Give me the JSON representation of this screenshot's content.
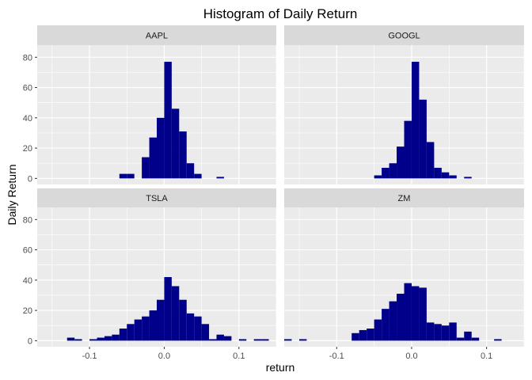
{
  "chart_data": {
    "type": "bar",
    "subtype": "faceted-histogram",
    "title": "Histogram of Daily Return",
    "xlabel": "return",
    "ylabel": "Daily Return",
    "xlim": [
      -0.17,
      0.15
    ],
    "ylim": [
      -4,
      88
    ],
    "x_ticks": [
      -0.1,
      0.0,
      0.1
    ],
    "x_tick_labels": [
      "-0.1",
      "0.0",
      "0.1"
    ],
    "y_ticks": [
      0,
      20,
      40,
      60,
      80
    ],
    "y_tick_labels": [
      "0",
      "20",
      "40",
      "60",
      "80"
    ],
    "bin_width": 0.01,
    "bar_color": "#00008B",
    "panel_background": "#EBEBEB",
    "strip_background": "#D9D9D9",
    "gridline_color": "#FFFFFF",
    "grid": true,
    "legend": "none",
    "facets": [
      {
        "label": "AAPL",
        "bins": [
          {
            "x": -0.055,
            "count": 3
          },
          {
            "x": -0.045,
            "count": 3
          },
          {
            "x": -0.025,
            "count": 14
          },
          {
            "x": -0.015,
            "count": 27
          },
          {
            "x": -0.005,
            "count": 40
          },
          {
            "x": 0.005,
            "count": 77
          },
          {
            "x": 0.015,
            "count": 46
          },
          {
            "x": 0.025,
            "count": 31
          },
          {
            "x": 0.035,
            "count": 10
          },
          {
            "x": 0.045,
            "count": 3
          },
          {
            "x": 0.075,
            "count": 1
          }
        ]
      },
      {
        "label": "GOOGL",
        "bins": [
          {
            "x": -0.045,
            "count": 2
          },
          {
            "x": -0.035,
            "count": 7
          },
          {
            "x": -0.025,
            "count": 10
          },
          {
            "x": -0.015,
            "count": 21
          },
          {
            "x": -0.005,
            "count": 38
          },
          {
            "x": 0.005,
            "count": 77
          },
          {
            "x": 0.015,
            "count": 52
          },
          {
            "x": 0.025,
            "count": 24
          },
          {
            "x": 0.035,
            "count": 7
          },
          {
            "x": 0.045,
            "count": 4
          },
          {
            "x": 0.055,
            "count": 2
          },
          {
            "x": 0.075,
            "count": 1
          }
        ]
      },
      {
        "label": "TSLA",
        "bins": [
          {
            "x": -0.125,
            "count": 2
          },
          {
            "x": -0.115,
            "count": 1
          },
          {
            "x": -0.095,
            "count": 1
          },
          {
            "x": -0.085,
            "count": 2
          },
          {
            "x": -0.075,
            "count": 3
          },
          {
            "x": -0.065,
            "count": 4
          },
          {
            "x": -0.055,
            "count": 8
          },
          {
            "x": -0.045,
            "count": 11
          },
          {
            "x": -0.035,
            "count": 14
          },
          {
            "x": -0.025,
            "count": 16
          },
          {
            "x": -0.015,
            "count": 20
          },
          {
            "x": -0.005,
            "count": 27
          },
          {
            "x": 0.005,
            "count": 42
          },
          {
            "x": 0.015,
            "count": 36
          },
          {
            "x": 0.025,
            "count": 27
          },
          {
            "x": 0.035,
            "count": 18
          },
          {
            "x": 0.045,
            "count": 16
          },
          {
            "x": 0.055,
            "count": 11
          },
          {
            "x": 0.065,
            "count": 1
          },
          {
            "x": 0.075,
            "count": 4
          },
          {
            "x": 0.085,
            "count": 3
          },
          {
            "x": 0.105,
            "count": 1
          },
          {
            "x": 0.125,
            "count": 1
          },
          {
            "x": 0.135,
            "count": 1
          }
        ]
      },
      {
        "label": "ZM",
        "bins": [
          {
            "x": -0.165,
            "count": 1
          },
          {
            "x": -0.145,
            "count": 1
          },
          {
            "x": -0.075,
            "count": 5
          },
          {
            "x": -0.065,
            "count": 7
          },
          {
            "x": -0.055,
            "count": 8
          },
          {
            "x": -0.045,
            "count": 14
          },
          {
            "x": -0.035,
            "count": 21
          },
          {
            "x": -0.025,
            "count": 26
          },
          {
            "x": -0.015,
            "count": 31
          },
          {
            "x": -0.005,
            "count": 38
          },
          {
            "x": 0.005,
            "count": 36
          },
          {
            "x": 0.015,
            "count": 35
          },
          {
            "x": 0.025,
            "count": 12
          },
          {
            "x": 0.035,
            "count": 11
          },
          {
            "x": 0.045,
            "count": 10
          },
          {
            "x": 0.055,
            "count": 12
          },
          {
            "x": 0.065,
            "count": 2
          },
          {
            "x": 0.075,
            "count": 6
          },
          {
            "x": 0.085,
            "count": 2
          },
          {
            "x": 0.115,
            "count": 1
          }
        ]
      }
    ]
  }
}
